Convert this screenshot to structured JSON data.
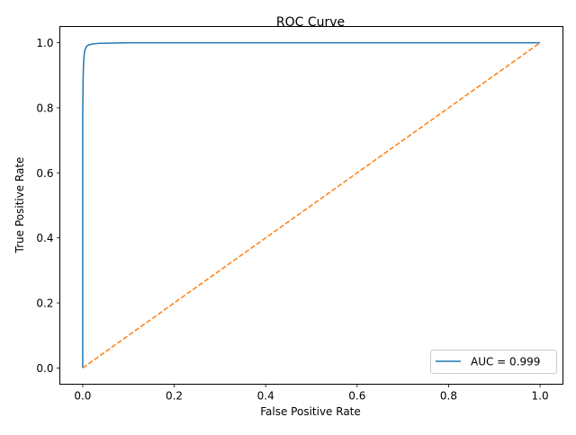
{
  "chart_data": {
    "type": "line",
    "title": "ROC Curve",
    "xlabel": "False Positive Rate",
    "ylabel": "True Positive Rate",
    "xlim": [
      -0.05,
      1.05
    ],
    "ylim": [
      -0.05,
      1.05
    ],
    "xticks": [
      0.0,
      0.2,
      0.4,
      0.6,
      0.8,
      1.0
    ],
    "xtick_labels": [
      "0.0",
      "0.2",
      "0.4",
      "0.6",
      "0.8",
      "1.0"
    ],
    "yticks": [
      0.0,
      0.2,
      0.4,
      0.6,
      0.8,
      1.0
    ],
    "ytick_labels": [
      "0.0",
      "0.2",
      "0.4",
      "0.6",
      "0.8",
      "1.0"
    ],
    "grid": false,
    "legend_position": "lower-right",
    "series": [
      {
        "name": "AUC = 0.999",
        "color": "#1f77b4",
        "style": "solid",
        "x": [
          0.0,
          0.0,
          0.001,
          0.002,
          0.003,
          0.004,
          0.006,
          0.008,
          0.012,
          0.02,
          0.035,
          0.06,
          0.1,
          0.3,
          1.0
        ],
        "y": [
          0.0,
          0.78,
          0.9,
          0.94,
          0.96,
          0.972,
          0.982,
          0.988,
          0.993,
          0.996,
          0.998,
          0.999,
          1.0,
          1.0,
          1.0
        ]
      },
      {
        "name": "",
        "color": "#ff7f0e",
        "style": "dashed",
        "x": [
          0.0,
          1.0
        ],
        "y": [
          0.0,
          1.0
        ]
      }
    ]
  }
}
